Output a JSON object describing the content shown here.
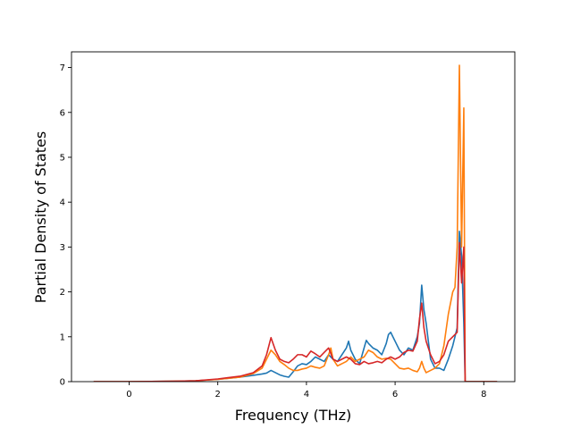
{
  "chart_data": {
    "type": "line",
    "title": "",
    "xlabel": "Frequency (THz)",
    "ylabel": "Partial Density of States",
    "xlim": [
      -1.3,
      8.7
    ],
    "ylim": [
      0,
      7.35
    ],
    "xticks": [
      0,
      2,
      4,
      6,
      8
    ],
    "yticks": [
      0,
      1,
      2,
      3,
      4,
      5,
      6,
      7
    ],
    "grid": false,
    "legend": "none",
    "series": [
      {
        "color": "#1f77b4",
        "points": [
          [
            -0.8,
            0
          ],
          [
            0,
            0
          ],
          [
            1,
            0.01
          ],
          [
            1.5,
            0.02
          ],
          [
            2,
            0.05
          ],
          [
            2.5,
            0.1
          ],
          [
            2.8,
            0.14
          ],
          [
            3,
            0.17
          ],
          [
            3.1,
            0.19
          ],
          [
            3.2,
            0.25
          ],
          [
            3.3,
            0.2
          ],
          [
            3.4,
            0.15
          ],
          [
            3.5,
            0.12
          ],
          [
            3.6,
            0.1
          ],
          [
            3.7,
            0.22
          ],
          [
            3.8,
            0.35
          ],
          [
            3.9,
            0.4
          ],
          [
            4.0,
            0.38
          ],
          [
            4.1,
            0.45
          ],
          [
            4.2,
            0.55
          ],
          [
            4.3,
            0.5
          ],
          [
            4.4,
            0.45
          ],
          [
            4.5,
            0.6
          ],
          [
            4.6,
            0.5
          ],
          [
            4.7,
            0.45
          ],
          [
            4.8,
            0.6
          ],
          [
            4.9,
            0.75
          ],
          [
            4.95,
            0.9
          ],
          [
            5.0,
            0.7
          ],
          [
            5.1,
            0.5
          ],
          [
            5.2,
            0.4
          ],
          [
            5.3,
            0.75
          ],
          [
            5.35,
            0.92
          ],
          [
            5.4,
            0.85
          ],
          [
            5.5,
            0.75
          ],
          [
            5.6,
            0.7
          ],
          [
            5.7,
            0.6
          ],
          [
            5.8,
            0.85
          ],
          [
            5.85,
            1.05
          ],
          [
            5.9,
            1.1
          ],
          [
            6.0,
            0.9
          ],
          [
            6.1,
            0.7
          ],
          [
            6.2,
            0.6
          ],
          [
            6.3,
            0.75
          ],
          [
            6.4,
            0.7
          ],
          [
            6.5,
            1.0
          ],
          [
            6.55,
            1.3
          ],
          [
            6.6,
            2.15
          ],
          [
            6.65,
            1.6
          ],
          [
            6.7,
            1.3
          ],
          [
            6.75,
            0.9
          ],
          [
            6.8,
            0.5
          ],
          [
            6.9,
            0.3
          ],
          [
            7.0,
            0.3
          ],
          [
            7.1,
            0.25
          ],
          [
            7.2,
            0.5
          ],
          [
            7.3,
            0.8
          ],
          [
            7.4,
            1.2
          ],
          [
            7.45,
            3.35
          ],
          [
            7.5,
            2.8
          ],
          [
            7.55,
            1.3
          ],
          [
            7.58,
            0
          ],
          [
            8.3,
            0
          ]
        ]
      },
      {
        "color": "#ff7f0e",
        "points": [
          [
            -0.8,
            0
          ],
          [
            0,
            0
          ],
          [
            1,
            0.01
          ],
          [
            1.5,
            0.02
          ],
          [
            2,
            0.05
          ],
          [
            2.5,
            0.1
          ],
          [
            2.8,
            0.18
          ],
          [
            3,
            0.3
          ],
          [
            3.1,
            0.5
          ],
          [
            3.2,
            0.7
          ],
          [
            3.3,
            0.6
          ],
          [
            3.4,
            0.45
          ],
          [
            3.5,
            0.38
          ],
          [
            3.6,
            0.3
          ],
          [
            3.7,
            0.25
          ],
          [
            3.8,
            0.25
          ],
          [
            3.9,
            0.28
          ],
          [
            4.0,
            0.3
          ],
          [
            4.1,
            0.35
          ],
          [
            4.2,
            0.32
          ],
          [
            4.3,
            0.3
          ],
          [
            4.4,
            0.35
          ],
          [
            4.5,
            0.6
          ],
          [
            4.55,
            0.75
          ],
          [
            4.6,
            0.5
          ],
          [
            4.7,
            0.35
          ],
          [
            4.8,
            0.4
          ],
          [
            4.9,
            0.45
          ],
          [
            5.0,
            0.55
          ],
          [
            5.1,
            0.45
          ],
          [
            5.2,
            0.5
          ],
          [
            5.3,
            0.55
          ],
          [
            5.4,
            0.7
          ],
          [
            5.5,
            0.65
          ],
          [
            5.6,
            0.55
          ],
          [
            5.7,
            0.5
          ],
          [
            5.8,
            0.52
          ],
          [
            5.9,
            0.5
          ],
          [
            6.0,
            0.4
          ],
          [
            6.1,
            0.3
          ],
          [
            6.2,
            0.28
          ],
          [
            6.3,
            0.3
          ],
          [
            6.4,
            0.25
          ],
          [
            6.5,
            0.22
          ],
          [
            6.55,
            0.3
          ],
          [
            6.6,
            0.45
          ],
          [
            6.65,
            0.3
          ],
          [
            6.7,
            0.2
          ],
          [
            6.8,
            0.25
          ],
          [
            6.9,
            0.3
          ],
          [
            7.0,
            0.4
          ],
          [
            7.1,
            0.8
          ],
          [
            7.2,
            1.5
          ],
          [
            7.3,
            2.0
          ],
          [
            7.35,
            2.1
          ],
          [
            7.4,
            3.0
          ],
          [
            7.45,
            7.05
          ],
          [
            7.5,
            3.0
          ],
          [
            7.55,
            6.1
          ],
          [
            7.58,
            0
          ],
          [
            8.3,
            0
          ]
        ]
      },
      {
        "color": "#d62728",
        "points": [
          [
            -0.8,
            0
          ],
          [
            0,
            0
          ],
          [
            1,
            0.01
          ],
          [
            1.5,
            0.02
          ],
          [
            2,
            0.06
          ],
          [
            2.5,
            0.12
          ],
          [
            2.8,
            0.2
          ],
          [
            3,
            0.35
          ],
          [
            3.1,
            0.6
          ],
          [
            3.2,
            0.98
          ],
          [
            3.3,
            0.7
          ],
          [
            3.4,
            0.5
          ],
          [
            3.5,
            0.45
          ],
          [
            3.6,
            0.42
          ],
          [
            3.7,
            0.5
          ],
          [
            3.8,
            0.6
          ],
          [
            3.9,
            0.6
          ],
          [
            4.0,
            0.55
          ],
          [
            4.1,
            0.68
          ],
          [
            4.2,
            0.62
          ],
          [
            4.3,
            0.55
          ],
          [
            4.4,
            0.65
          ],
          [
            4.5,
            0.75
          ],
          [
            4.6,
            0.5
          ],
          [
            4.7,
            0.45
          ],
          [
            4.8,
            0.5
          ],
          [
            4.9,
            0.55
          ],
          [
            5.0,
            0.5
          ],
          [
            5.1,
            0.4
          ],
          [
            5.2,
            0.38
          ],
          [
            5.3,
            0.45
          ],
          [
            5.4,
            0.4
          ],
          [
            5.5,
            0.42
          ],
          [
            5.6,
            0.45
          ],
          [
            5.7,
            0.42
          ],
          [
            5.8,
            0.5
          ],
          [
            5.9,
            0.55
          ],
          [
            6.0,
            0.5
          ],
          [
            6.1,
            0.55
          ],
          [
            6.2,
            0.65
          ],
          [
            6.3,
            0.7
          ],
          [
            6.4,
            0.68
          ],
          [
            6.5,
            0.9
          ],
          [
            6.55,
            1.4
          ],
          [
            6.6,
            1.75
          ],
          [
            6.65,
            1.2
          ],
          [
            6.7,
            0.9
          ],
          [
            6.8,
            0.6
          ],
          [
            6.9,
            0.4
          ],
          [
            7.0,
            0.45
          ],
          [
            7.1,
            0.6
          ],
          [
            7.2,
            0.9
          ],
          [
            7.3,
            1.0
          ],
          [
            7.4,
            1.1
          ],
          [
            7.45,
            3.1
          ],
          [
            7.5,
            2.2
          ],
          [
            7.55,
            3.0
          ],
          [
            7.58,
            0
          ],
          [
            8.3,
            0
          ]
        ]
      }
    ]
  }
}
